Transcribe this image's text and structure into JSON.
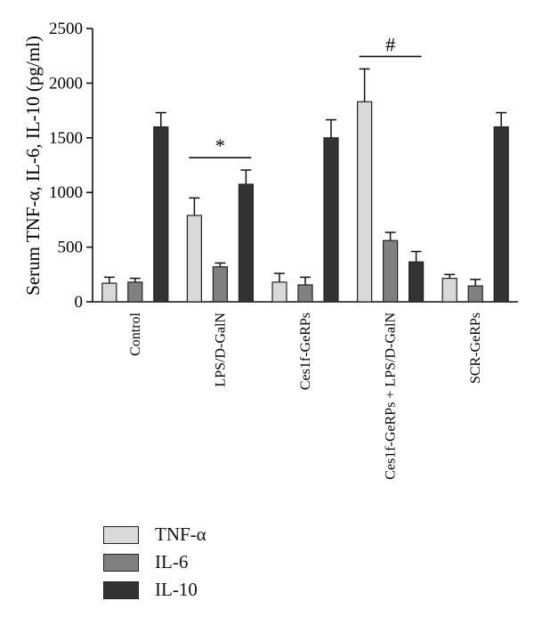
{
  "chart_data": {
    "type": "bar",
    "ylabel": "Serum TNF-α, IL-6, IL-10 (pg/ml)",
    "xlabel": "",
    "ylim": [
      0,
      2500
    ],
    "yticks": [
      0,
      500,
      1000,
      1500,
      2000,
      2500
    ],
    "categories": [
      "Control",
      "LPS/D-GalN",
      "Ces1f-GeRPs",
      "Ces1f-GeRPs + LPS/D-GalN",
      "SCR-GeRPs"
    ],
    "series": [
      {
        "name": "TNF-α",
        "color": "#d9d9d9",
        "values": [
          170,
          790,
          180,
          1830,
          215
        ],
        "errors": [
          55,
          160,
          80,
          300,
          35
        ]
      },
      {
        "name": "IL-6",
        "color": "#808080",
        "values": [
          180,
          320,
          155,
          560,
          145
        ],
        "errors": [
          35,
          35,
          70,
          75,
          60
        ]
      },
      {
        "name": "IL-10",
        "color": "#333333",
        "values": [
          1600,
          1075,
          1500,
          365,
          1600
        ],
        "errors": [
          130,
          130,
          165,
          95,
          130
        ]
      }
    ],
    "annotations": [
      {
        "text": "*",
        "category": "LPS/D-GalN",
        "from_series": 0,
        "to_series": 2
      },
      {
        "text": "#",
        "category": "Ces1f-GeRPs + LPS/D-GalN",
        "from_series": 0,
        "to_series": 2
      }
    ],
    "legend": "bottom-left",
    "grid": false
  }
}
